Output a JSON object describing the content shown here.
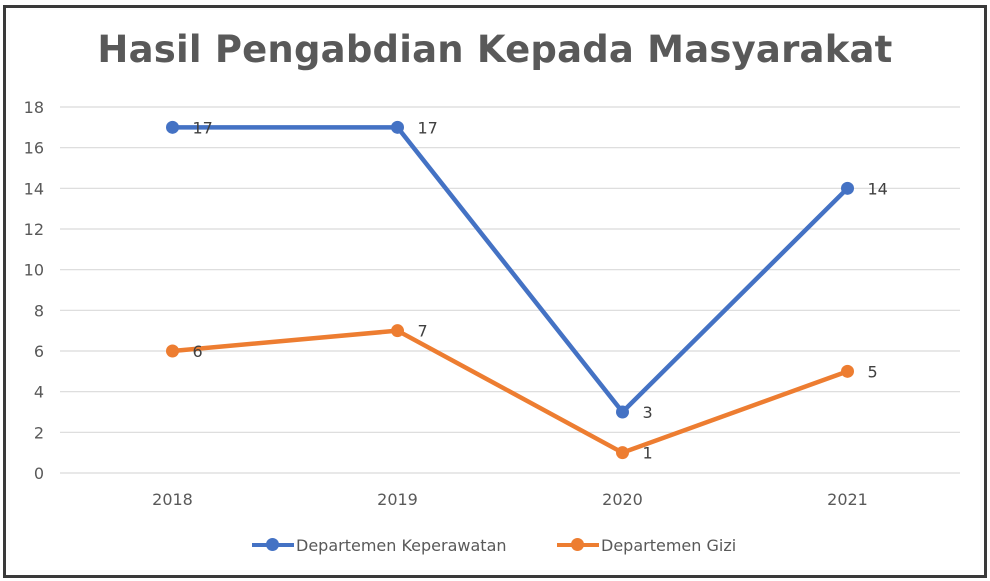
{
  "chart_data": {
    "type": "line",
    "title": "Hasil Pengabdian Kepada Masyarakat",
    "categories": [
      "2018",
      "2019",
      "2020",
      "2021"
    ],
    "series": [
      {
        "name": "Departemen Keperawatan",
        "values": [
          17,
          17,
          3,
          14
        ],
        "color": "#4472c4"
      },
      {
        "name": "Departemen Gizi",
        "values": [
          6,
          7,
          1,
          5
        ],
        "color": "#ed7d31"
      }
    ],
    "ylim": [
      0,
      18
    ],
    "yticks": [
      0,
      2,
      4,
      6,
      8,
      10,
      12,
      14,
      16,
      18
    ],
    "grid": true,
    "legend_position": "bottom",
    "data_labels": true
  }
}
